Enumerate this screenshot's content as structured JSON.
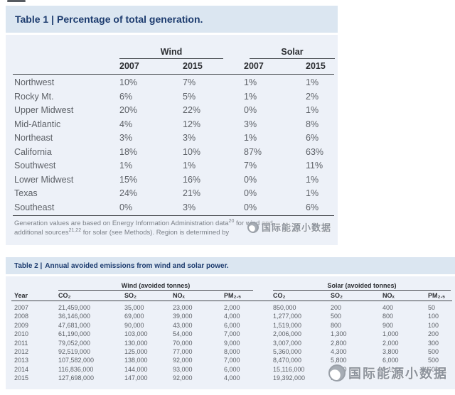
{
  "colors": {
    "panel_body_bg": "#edf1f8",
    "panel_band_bg": "#dbe6f1",
    "title_text": "#1d3c6f",
    "header_text": "#2b2d31",
    "body_text": "#5d6167",
    "footnote_text": "#7c8188",
    "rule": "#43464b",
    "watermark": "#8d939c"
  },
  "table1": {
    "title_prefix": "Table 1 |",
    "title_rest": "Percentage of total generation.",
    "group_headers": [
      "Wind",
      "Solar"
    ],
    "col_headers": [
      "2007",
      "2015",
      "2007",
      "2015"
    ],
    "rows": [
      {
        "region": "Northwest",
        "values": [
          "10%",
          "7%",
          "1%",
          "1%"
        ]
      },
      {
        "region": "Rocky Mt.",
        "values": [
          "6%",
          "5%",
          "1%",
          "2%"
        ]
      },
      {
        "region": "Upper Midwest",
        "values": [
          "20%",
          "22%",
          "0%",
          "1%"
        ]
      },
      {
        "region": "Mid-Atlantic",
        "values": [
          "4%",
          "12%",
          "3%",
          "8%"
        ]
      },
      {
        "region": "Northeast",
        "values": [
          "3%",
          "3%",
          "1%",
          "6%"
        ]
      },
      {
        "region": "California",
        "values": [
          "18%",
          "10%",
          "87%",
          "63%"
        ]
      },
      {
        "region": "Southwest",
        "values": [
          "1%",
          "1%",
          "7%",
          "11%"
        ]
      },
      {
        "region": "Lower Midwest",
        "values": [
          "15%",
          "16%",
          "0%",
          "1%"
        ]
      },
      {
        "region": "Texas",
        "values": [
          "24%",
          "21%",
          "0%",
          "1%"
        ]
      },
      {
        "region": "Southeast",
        "values": [
          "0%",
          "3%",
          "0%",
          "6%"
        ]
      }
    ],
    "footnote": {
      "line1_pre": "Generation values are based on Energy Information Administration data",
      "line1_sup": "20",
      "line1_post": " for wind and",
      "line2_pre": "additional sources",
      "line2_sup": "21,22",
      "line2_post": " for solar (see Methods). Region is determined by"
    }
  },
  "table2": {
    "title_prefix": "Table 2 |",
    "title_rest": "Annual avoided emissions from wind and solar power.",
    "year_header": "Year",
    "group_headers": [
      "Wind (avoided tonnes)",
      "Solar (avoided tonnes)"
    ],
    "col_headers": [
      "CO₂",
      "SO₂",
      "NOₓ",
      "PM₂.₅",
      "CO₂",
      "SO₂",
      "NOₓ",
      "PM₂.₅"
    ],
    "rows": [
      {
        "year": "2007",
        "values": [
          "21,459,000",
          "35,000",
          "23,000",
          "2,000",
          "850,000",
          "200",
          "400",
          "50"
        ]
      },
      {
        "year": "2008",
        "values": [
          "36,146,000",
          "69,000",
          "39,000",
          "4,000",
          "1,277,000",
          "500",
          "800",
          "100"
        ]
      },
      {
        "year": "2009",
        "values": [
          "47,681,000",
          "90,000",
          "43,000",
          "6,000",
          "1,519,000",
          "800",
          "900",
          "100"
        ]
      },
      {
        "year": "2010",
        "values": [
          "61,190,000",
          "103,000",
          "54,000",
          "7,000",
          "2,006,000",
          "1,300",
          "1,000",
          "200"
        ]
      },
      {
        "year": "2011",
        "values": [
          "79,052,000",
          "130,000",
          "70,000",
          "9,000",
          "3,007,000",
          "2,800",
          "2,000",
          "300"
        ]
      },
      {
        "year": "2012",
        "values": [
          "92,519,000",
          "125,000",
          "77,000",
          "8,000",
          "5,360,000",
          "4,300",
          "3,800",
          "500"
        ]
      },
      {
        "year": "2013",
        "values": [
          "107,582,000",
          "138,000",
          "92,000",
          "7,000",
          "8,470,000",
          "5,800",
          "6,000",
          "500"
        ]
      },
      {
        "year": "2014",
        "values": [
          "116,836,000",
          "144,000",
          "93,000",
          "6,000",
          "15,116,000",
          "8,000",
          "9,100",
          "600"
        ]
      },
      {
        "year": "2015",
        "values": [
          "127,698,000",
          "147,000",
          "92,000",
          "4,000",
          "19,392,000",
          "9,5",
          "",
          ""
        ]
      }
    ]
  },
  "watermark": {
    "text": "国际能源小数据"
  }
}
